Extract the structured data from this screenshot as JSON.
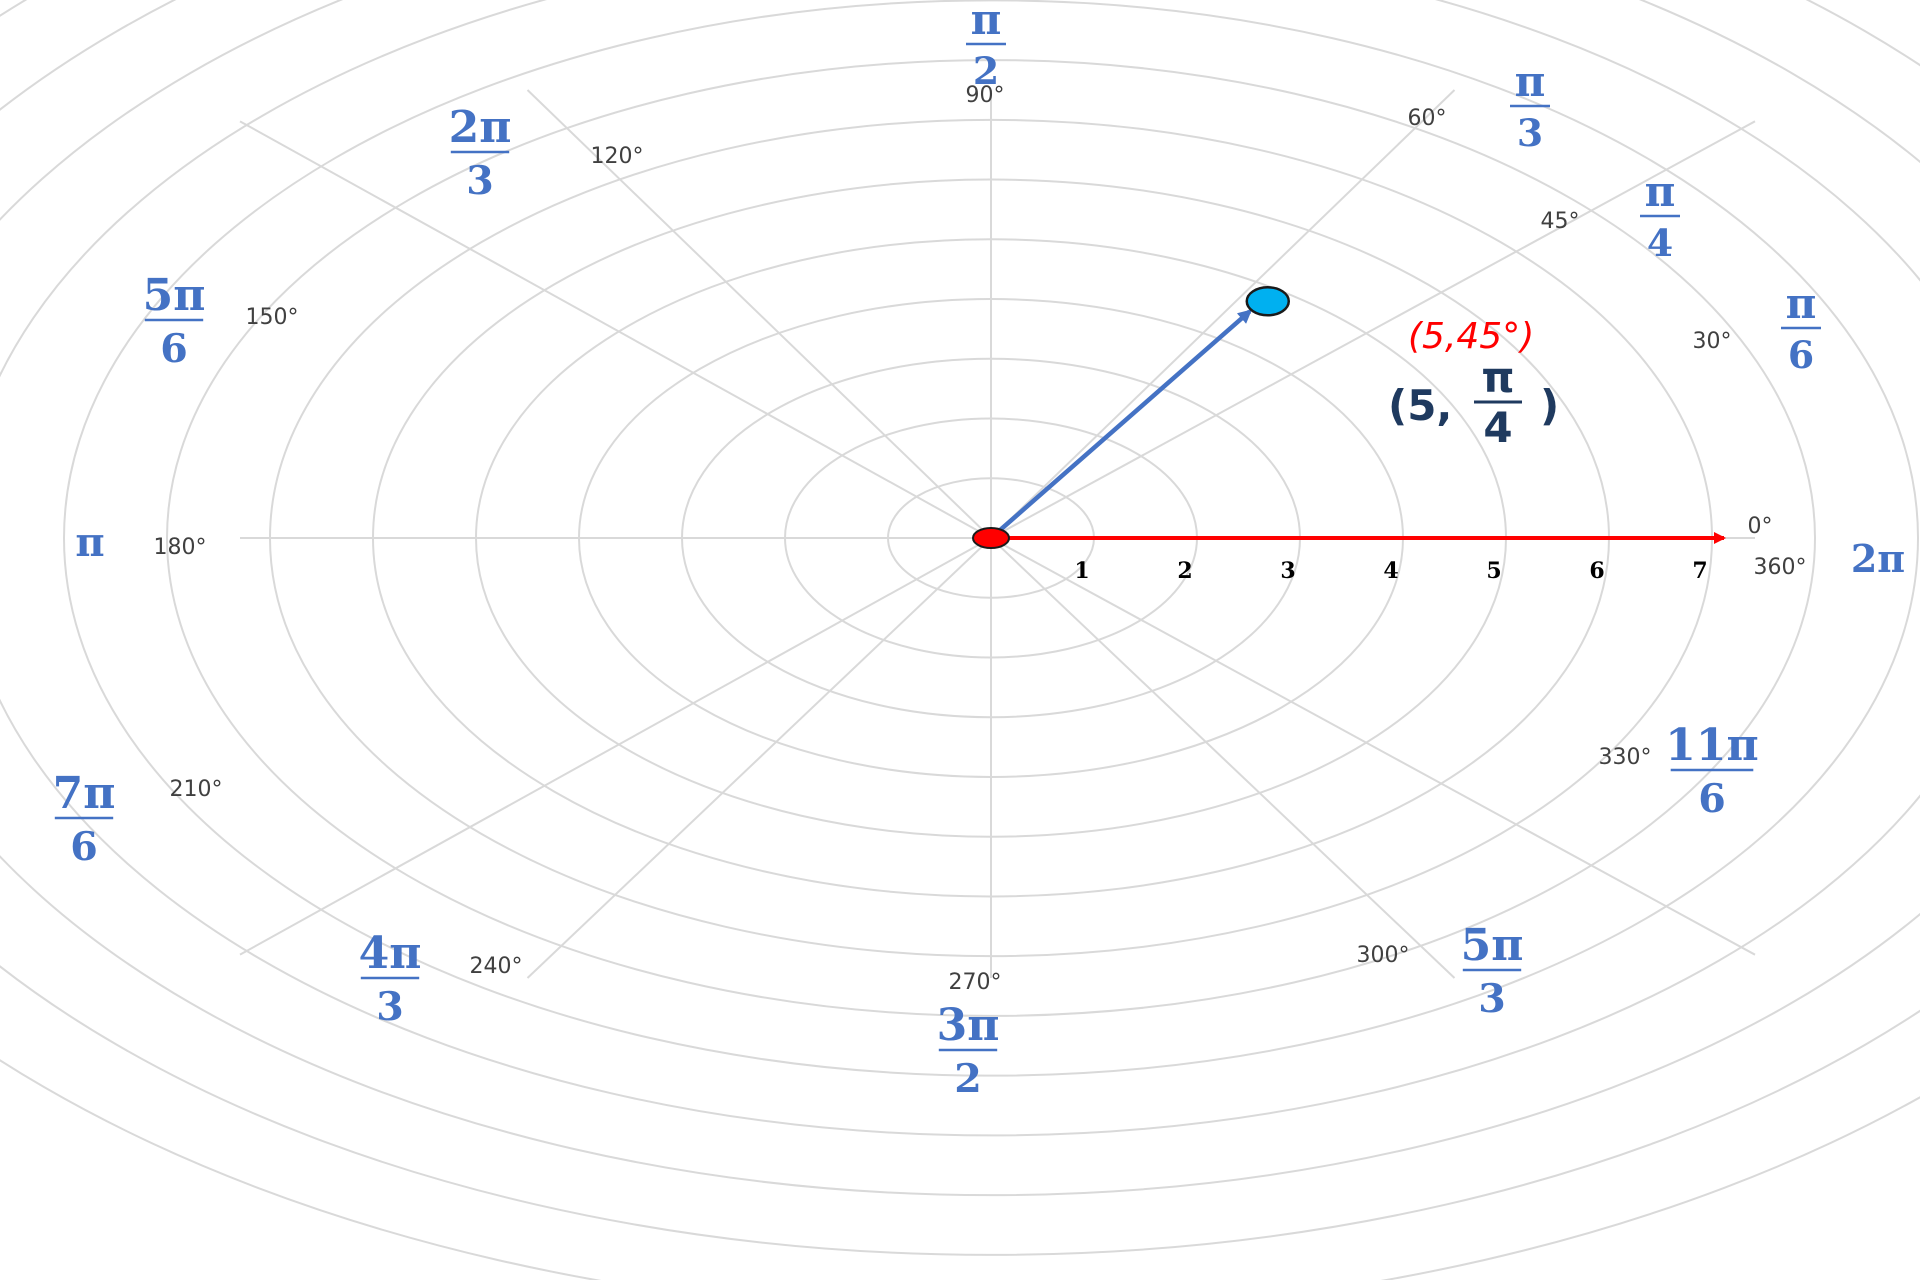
{
  "polar_grid": {
    "radial_ticks": [
      "1",
      "2",
      "3",
      "4",
      "5",
      "6",
      "7"
    ],
    "angles": [
      {
        "deg": 0,
        "deg_label": "0°",
        "rad": {
          "num": "",
          "den": ""
        }
      },
      {
        "deg": 30,
        "deg_label": "30°",
        "rad": {
          "num": "π",
          "den": "6"
        }
      },
      {
        "deg": 45,
        "deg_label": "45°",
        "rad": {
          "num": "π",
          "den": "4"
        }
      },
      {
        "deg": 60,
        "deg_label": "60°",
        "rad": {
          "num": "π",
          "den": "3"
        }
      },
      {
        "deg": 90,
        "deg_label": "90°",
        "rad": {
          "num": "π",
          "den": "2"
        }
      },
      {
        "deg": 120,
        "deg_label": "120°",
        "rad": {
          "num": "2π",
          "den": "3"
        }
      },
      {
        "deg": 150,
        "deg_label": "150°",
        "rad": {
          "num": "5π",
          "den": "6"
        }
      },
      {
        "deg": 180,
        "deg_label": "180°",
        "rad": {
          "num": "π",
          "den": ""
        }
      },
      {
        "deg": 210,
        "deg_label": "210°",
        "rad": {
          "num": "7π",
          "den": "6"
        }
      },
      {
        "deg": 240,
        "deg_label": "240°",
        "rad": {
          "num": "4π",
          "den": "3"
        }
      },
      {
        "deg": 270,
        "deg_label": "270°",
        "rad": {
          "num": "3π",
          "den": "2"
        }
      },
      {
        "deg": 300,
        "deg_label": "300°",
        "rad": {
          "num": "5π",
          "den": "3"
        }
      },
      {
        "deg": 330,
        "deg_label": "330°",
        "rad": {
          "num": "11π",
          "den": "6"
        }
      },
      {
        "deg": 360,
        "deg_label": "360°",
        "rad": {
          "num": "2π",
          "den": ""
        }
      }
    ]
  },
  "point": {
    "r": 5,
    "theta_deg": 45,
    "label_degrees": "(5,45°)",
    "label_radians": {
      "prefix": "(5,",
      "num": "π",
      "den": "4",
      "suffix": ")"
    }
  },
  "colors": {
    "grid": "#d9d9d9",
    "axis_arrow": "#ff0000",
    "vector": "#4472c4",
    "point_fill": "#00b0f0",
    "origin_fill": "#ff0000",
    "radian_labels": "#4472c4",
    "point_label_degrees": "#ff0000",
    "point_label_radians": "#1f3a5f"
  }
}
